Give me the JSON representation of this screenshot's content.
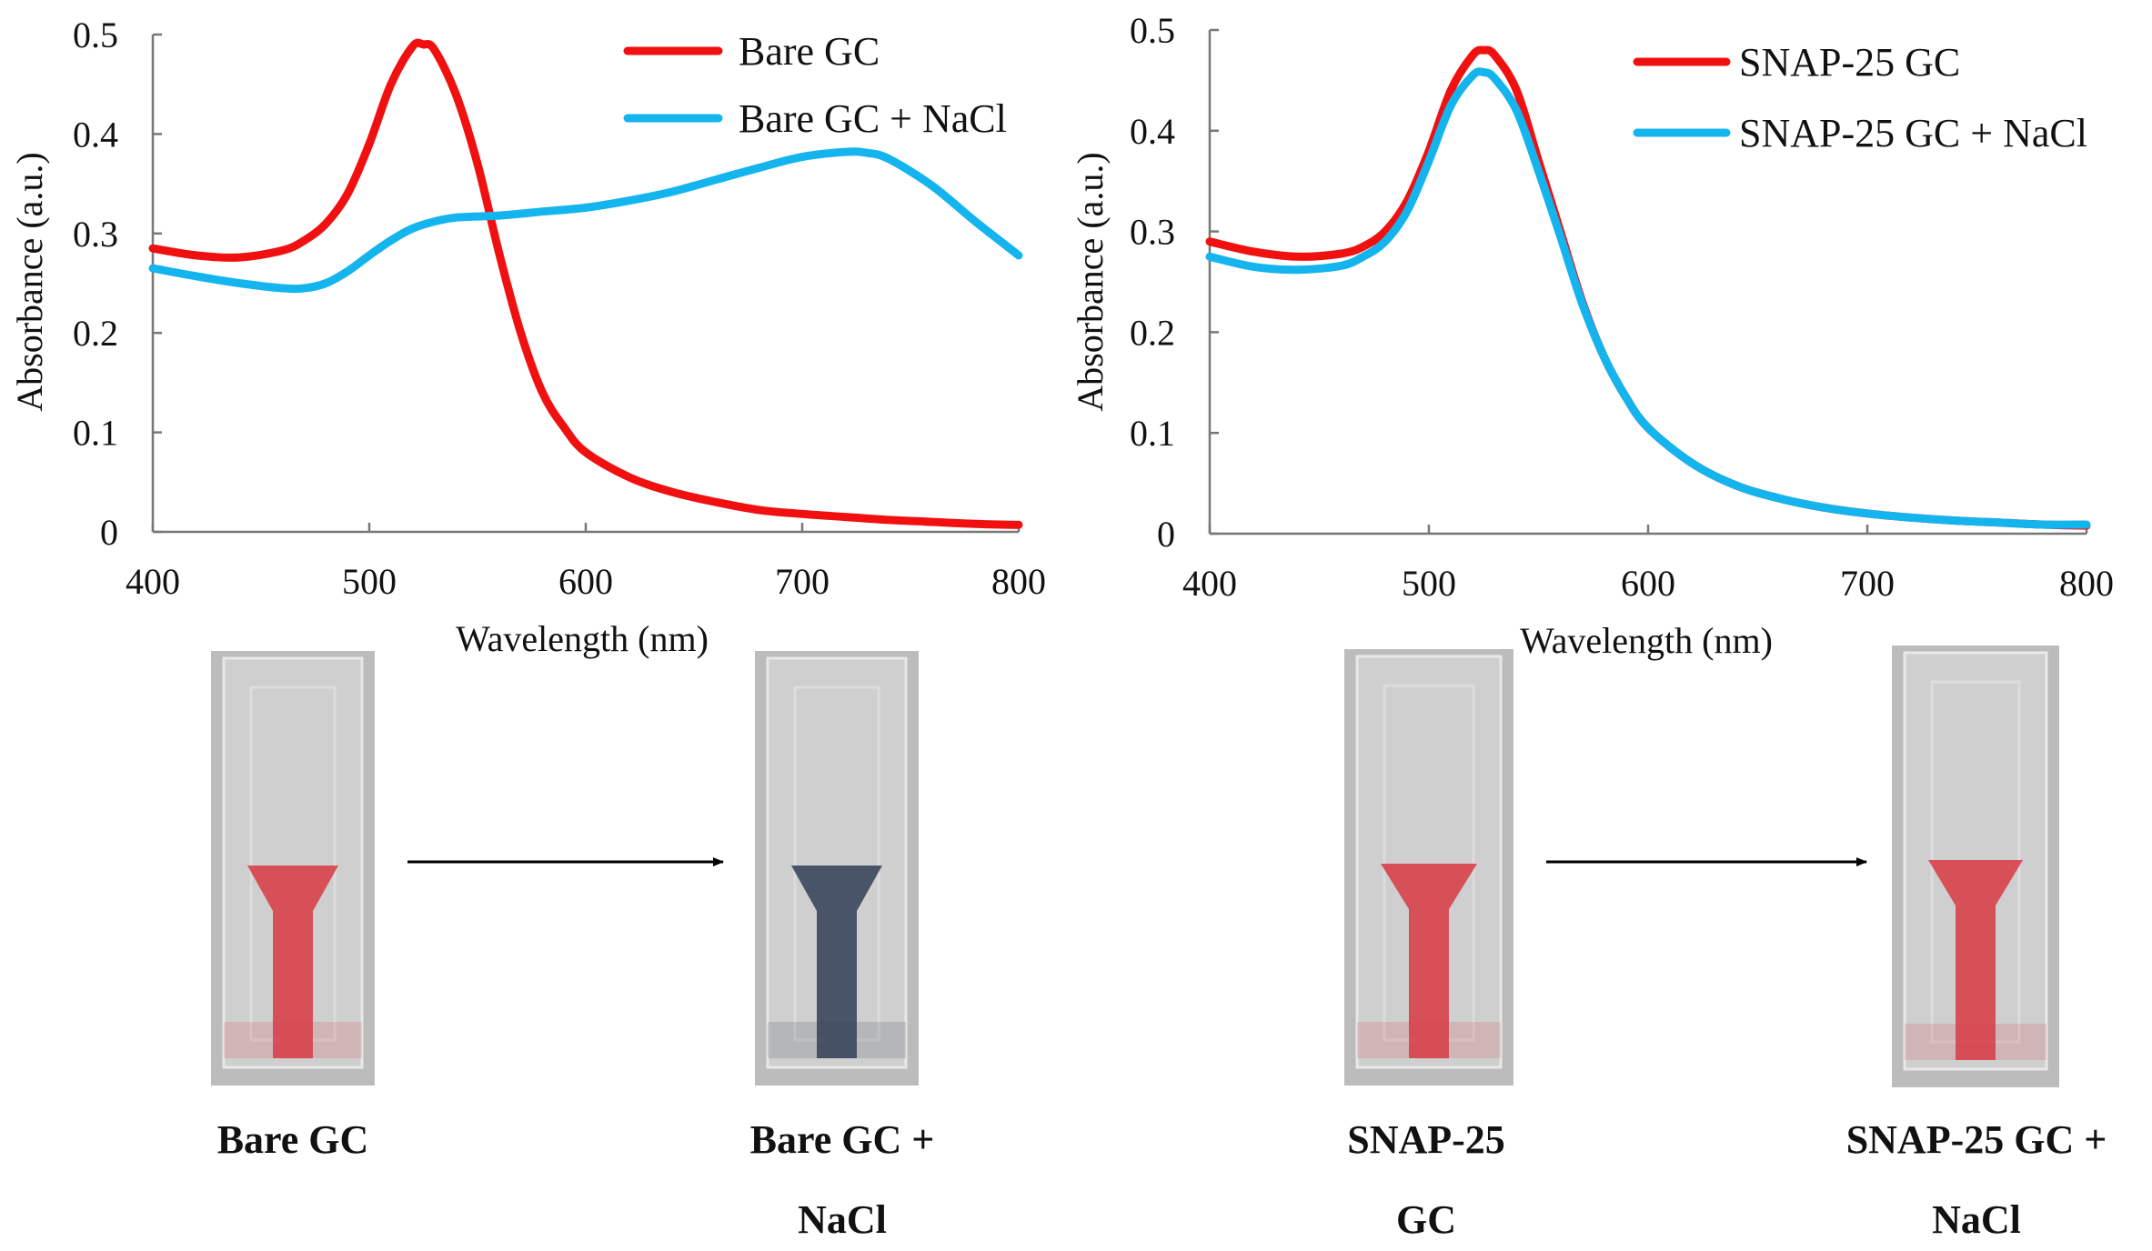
{
  "colors": {
    "red": "#f01010",
    "blue": "#14b4ee",
    "axis": "#777777",
    "arrow": "#000000",
    "red_solution": "#d8454e",
    "blue_solution": "#3e4a60"
  },
  "chart_data": [
    {
      "type": "line",
      "xlabel": "Wavelength (nm)",
      "ylabel": "Absorbance (a.u.)",
      "xlim": [
        400,
        800
      ],
      "ylim": [
        0,
        0.5
      ],
      "xticks": [
        "400",
        "500",
        "600",
        "700",
        "800"
      ],
      "yticks": [
        "0",
        "0.1",
        "0.2",
        "0.3",
        "0.4",
        "0.5"
      ],
      "legend_position": "top-right",
      "series": [
        {
          "name": "Bare GC",
          "color": "red",
          "x": [
            400,
            420,
            440,
            460,
            470,
            480,
            490,
            500,
            510,
            520,
            525,
            530,
            540,
            550,
            560,
            570,
            580,
            590,
            600,
            620,
            640,
            660,
            680,
            700,
            720,
            740,
            760,
            780,
            800
          ],
          "y": [
            0.285,
            0.278,
            0.276,
            0.283,
            0.293,
            0.31,
            0.34,
            0.39,
            0.45,
            0.488,
            0.49,
            0.485,
            0.44,
            0.37,
            0.28,
            0.2,
            0.14,
            0.105,
            0.08,
            0.055,
            0.04,
            0.03,
            0.022,
            0.018,
            0.015,
            0.012,
            0.01,
            0.008,
            0.007
          ]
        },
        {
          "name": "Bare GC + NaCl",
          "color": "blue",
          "x": [
            400,
            420,
            440,
            460,
            470,
            480,
            490,
            500,
            510,
            520,
            530,
            540,
            560,
            580,
            600,
            620,
            640,
            660,
            680,
            700,
            720,
            730,
            740,
            760,
            780,
            800
          ],
          "y": [
            0.265,
            0.257,
            0.25,
            0.245,
            0.245,
            0.25,
            0.262,
            0.278,
            0.293,
            0.305,
            0.312,
            0.316,
            0.318,
            0.322,
            0.326,
            0.333,
            0.342,
            0.354,
            0.366,
            0.377,
            0.382,
            0.381,
            0.375,
            0.348,
            0.312,
            0.278
          ]
        }
      ]
    },
    {
      "type": "line",
      "xlabel": "Wavelength (nm)",
      "ylabel": "Absorbance (a.u.)",
      "xlim": [
        400,
        800
      ],
      "ylim": [
        0,
        0.5
      ],
      "xticks": [
        "400",
        "500",
        "600",
        "700",
        "800"
      ],
      "yticks": [
        "0",
        "0.1",
        "0.2",
        "0.3",
        "0.4",
        "0.5"
      ],
      "legend_position": "top-right",
      "series": [
        {
          "name": "SNAP-25 GC",
          "color": "red",
          "x": [
            400,
            420,
            440,
            460,
            470,
            480,
            490,
            500,
            510,
            520,
            525,
            530,
            540,
            550,
            560,
            570,
            580,
            590,
            600,
            620,
            640,
            660,
            680,
            700,
            720,
            740,
            760,
            780,
            800
          ],
          "y": [
            0.29,
            0.28,
            0.275,
            0.278,
            0.285,
            0.3,
            0.33,
            0.38,
            0.44,
            0.475,
            0.48,
            0.475,
            0.44,
            0.37,
            0.3,
            0.23,
            0.175,
            0.135,
            0.105,
            0.07,
            0.048,
            0.035,
            0.026,
            0.02,
            0.016,
            0.013,
            0.011,
            0.009,
            0.008
          ]
        },
        {
          "name": "SNAP-25 GC + NaCl",
          "color": "blue",
          "x": [
            400,
            420,
            440,
            460,
            470,
            480,
            490,
            500,
            510,
            520,
            525,
            530,
            540,
            550,
            560,
            570,
            580,
            590,
            600,
            620,
            640,
            660,
            680,
            700,
            720,
            740,
            760,
            780,
            800
          ],
          "y": [
            0.275,
            0.265,
            0.262,
            0.266,
            0.275,
            0.29,
            0.32,
            0.37,
            0.425,
            0.455,
            0.458,
            0.452,
            0.42,
            0.36,
            0.295,
            0.228,
            0.175,
            0.135,
            0.105,
            0.07,
            0.048,
            0.035,
            0.026,
            0.02,
            0.016,
            0.013,
            0.011,
            0.009,
            0.009
          ]
        }
      ]
    }
  ],
  "photos": [
    {
      "caption_lines": [
        "Bare GC"
      ],
      "solution": "red_solution"
    },
    {
      "caption_lines": [
        "Bare GC +",
        "NaCl"
      ],
      "solution": "blue_solution"
    },
    {
      "caption_lines": [
        "SNAP-25",
        "GC"
      ],
      "solution": "red_solution"
    },
    {
      "caption_lines": [
        "SNAP-25 GC +",
        "NaCl"
      ],
      "solution": "red_solution"
    }
  ]
}
